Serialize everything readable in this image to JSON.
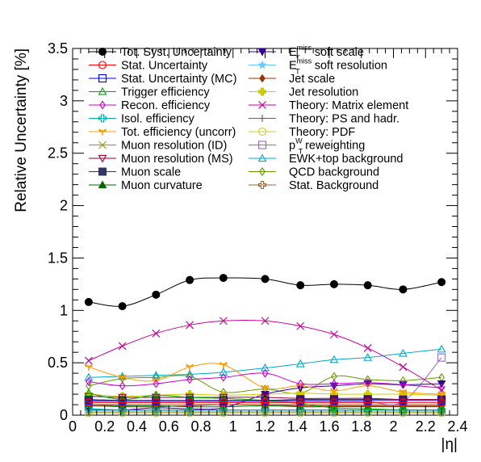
{
  "chart_data": {
    "type": "line",
    "xlabel": "|η|",
    "ylabel": "Relative Uncertainty [%]",
    "xlim": [
      0,
      2.4
    ],
    "ylim": [
      0,
      3.5
    ],
    "x_ticks": [
      "0",
      "0.2",
      "0.4",
      "0.6",
      "0.8",
      "1",
      "1.2",
      "1.4",
      "1.6",
      "1.8",
      "2",
      "2.2",
      "2.4"
    ],
    "y_ticks": [
      "0",
      "0.5",
      "1",
      "1.5",
      "2",
      "2.5",
      "3",
      "3.5"
    ],
    "x": [
      0.1,
      0.31,
      0.52,
      0.73,
      0.94,
      1.2,
      1.42,
      1.63,
      1.84,
      2.06,
      2.3
    ],
    "series": [
      {
        "name": "Tot. Syst. Uncertainty",
        "color": "#000000",
        "marker": "filled-circle",
        "values": [
          1.08,
          1.04,
          1.15,
          1.29,
          1.31,
          1.3,
          1.24,
          1.25,
          1.24,
          1.2,
          1.27
        ]
      },
      {
        "name": "Stat. Uncertainty",
        "color": "#ff0000",
        "marker": "open-circle",
        "values": [
          0.12,
          0.12,
          0.12,
          0.12,
          0.12,
          0.12,
          0.12,
          0.12,
          0.12,
          0.12,
          0.12
        ]
      },
      {
        "name": "Stat. Uncertainty (MC)",
        "color": "#0000ff",
        "marker": "open-square",
        "values": [
          0.14,
          0.14,
          0.14,
          0.14,
          0.14,
          0.14,
          0.14,
          0.14,
          0.14,
          0.14,
          0.14
        ]
      },
      {
        "name": "Trigger efficiency",
        "color": "#00aa00",
        "marker": "open-triangle-up",
        "values": [
          0.21,
          0.15,
          0.19,
          0.17,
          0.16,
          0.14,
          0.11,
          0.07,
          0.06,
          0.05,
          0.05
        ]
      },
      {
        "name": "Recon. efficiency",
        "color": "#cc00cc",
        "marker": "open-diamond",
        "values": [
          0.32,
          0.28,
          0.3,
          0.34,
          0.36,
          0.4,
          0.3,
          0.3,
          0.31,
          0.29,
          0.26
        ]
      },
      {
        "name": "Isol. efficiency",
        "color": "#00aaaa",
        "marker": "open-cross",
        "values": [
          0.06,
          0.05,
          0.05,
          0.05,
          0.05,
          0.05,
          0.05,
          0.05,
          0.05,
          0.05,
          0.05
        ]
      },
      {
        "name": "Tot. efficiency (uncorr)",
        "color": "#ff9900",
        "marker": "tri-star",
        "values": [
          0.46,
          0.36,
          0.33,
          0.46,
          0.48,
          0.26,
          0.28,
          0.23,
          0.28,
          0.22,
          0.2
        ]
      },
      {
        "name": "Muon resolution (ID)",
        "color": "#999900",
        "marker": "asterisk",
        "values": [
          0.03,
          0.03,
          0.03,
          0.03,
          0.03,
          0.03,
          0.03,
          0.03,
          0.03,
          0.03,
          0.03
        ]
      },
      {
        "name": "Muon resolution (MS)",
        "color": "#990033",
        "marker": "open-triangle-down",
        "values": [
          0.18,
          0.17,
          0.17,
          0.17,
          0.17,
          0.17,
          0.16,
          0.16,
          0.16,
          0.15,
          0.15
        ]
      },
      {
        "name": "Muon scale",
        "color": "#333366",
        "marker": "filled-square",
        "values": [
          0.15,
          0.14,
          0.14,
          0.14,
          0.14,
          0.14,
          0.15,
          0.15,
          0.15,
          0.15,
          0.15
        ]
      },
      {
        "name": "Muon curvature",
        "color": "#006600",
        "marker": "filled-triangle-up",
        "values": [
          0.1,
          0.09,
          0.09,
          0.08,
          0.08,
          0.09,
          0.08,
          0.08,
          0.08,
          0.08,
          0.08
        ]
      },
      {
        "name": "E_T^miss soft scale",
        "color": "#330099",
        "marker": "filled-triangle-down",
        "values": [
          0.06,
          0.05,
          0.07,
          0.06,
          0.07,
          0.2,
          0.26,
          0.28,
          0.3,
          0.29,
          0.3
        ]
      },
      {
        "name": "E_T^miss soft resolution",
        "color": "#66ccff",
        "marker": "star",
        "values": [
          0.04,
          0.04,
          0.04,
          0.04,
          0.04,
          0.04,
          0.04,
          0.04,
          0.04,
          0.04,
          0.04
        ]
      },
      {
        "name": "Jet scale",
        "color": "#993300",
        "marker": "filled-diamond",
        "values": [
          0.09,
          0.08,
          0.08,
          0.09,
          0.1,
          0.1,
          0.09,
          0.09,
          0.09,
          0.09,
          0.09
        ]
      },
      {
        "name": "Jet resolution",
        "color": "#cccc00",
        "marker": "filled-cross",
        "values": [
          0.2,
          0.18,
          0.19,
          0.2,
          0.19,
          0.2,
          0.21,
          0.2,
          0.2,
          0.2,
          0.19
        ]
      },
      {
        "name": "Theory: Matrix element",
        "color": "#cc0099",
        "marker": "x",
        "values": [
          0.52,
          0.66,
          0.78,
          0.86,
          0.9,
          0.9,
          0.85,
          0.77,
          0.64,
          0.46,
          0.24
        ]
      },
      {
        "name": "Theory: PS and hadr.",
        "color": "#666666",
        "marker": "plus",
        "values": [
          0.05,
          0.05,
          0.05,
          0.05,
          0.05,
          0.05,
          0.05,
          0.05,
          0.05,
          0.05,
          0.05
        ]
      },
      {
        "name": "Theory: PDF",
        "color": "#cccc33",
        "marker": "open-circle",
        "values": [
          0.02,
          0.02,
          0.02,
          0.02,
          0.02,
          0.02,
          0.02,
          0.02,
          0.02,
          0.02,
          0.02
        ]
      },
      {
        "name": "p_T^W reweighting",
        "color": "#9966cc",
        "marker": "open-square",
        "values": [
          0.13,
          0.13,
          0.13,
          0.13,
          0.13,
          0.13,
          0.13,
          0.13,
          0.13,
          0.13,
          0.55
        ]
      },
      {
        "name": "EWK+top background",
        "color": "#00aacc",
        "marker": "open-triangle-up",
        "values": [
          0.36,
          0.37,
          0.38,
          0.39,
          0.41,
          0.45,
          0.49,
          0.53,
          0.55,
          0.59,
          0.63
        ]
      },
      {
        "name": "QCD background",
        "color": "#669900",
        "marker": "open-diamond",
        "values": [
          0.28,
          0.35,
          0.36,
          0.37,
          0.22,
          0.25,
          0.21,
          0.37,
          0.34,
          0.33,
          0.36
        ]
      },
      {
        "name": "Stat. Background",
        "color": "#996633",
        "marker": "open-cross",
        "values": [
          0.1,
          0.1,
          0.1,
          0.1,
          0.1,
          0.1,
          0.1,
          0.1,
          0.1,
          0.1,
          0.1
        ]
      }
    ]
  }
}
